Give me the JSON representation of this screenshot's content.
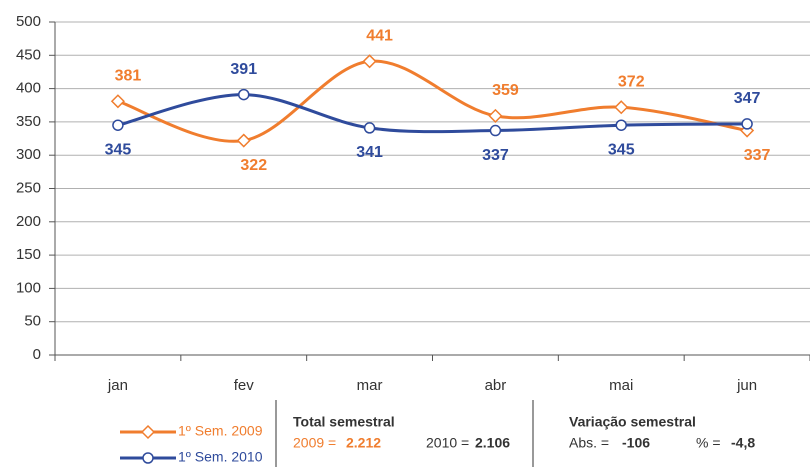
{
  "chart_data": {
    "type": "line",
    "categories": [
      "jan",
      "fev",
      "mar",
      "abr",
      "mai",
      "jun"
    ],
    "series": [
      {
        "name": "1º Sem. 2009",
        "color": "#f07d2e",
        "marker": "diamond",
        "values": [
          381,
          322,
          441,
          359,
          372,
          337
        ]
      },
      {
        "name": "1º Sem. 2010",
        "color": "#2f4b9c",
        "marker": "circle",
        "values": [
          345,
          391,
          341,
          337,
          345,
          347
        ]
      }
    ],
    "ylim": [
      0,
      500
    ],
    "yticks": [
      0,
      50,
      100,
      150,
      200,
      250,
      300,
      350,
      400,
      450,
      500
    ],
    "grid": true,
    "annotations": {
      "total_title": "Total semestral",
      "total_2009_label": "2009 =",
      "total_2009_value": "2.212",
      "total_2010_label": "2010 =",
      "total_2010_value": "2.106",
      "var_title": "Variação semestral",
      "var_abs_label": "Abs. =",
      "var_abs_value": "-106",
      "var_pct_label": "% =",
      "var_pct_value": "-4,8"
    }
  }
}
